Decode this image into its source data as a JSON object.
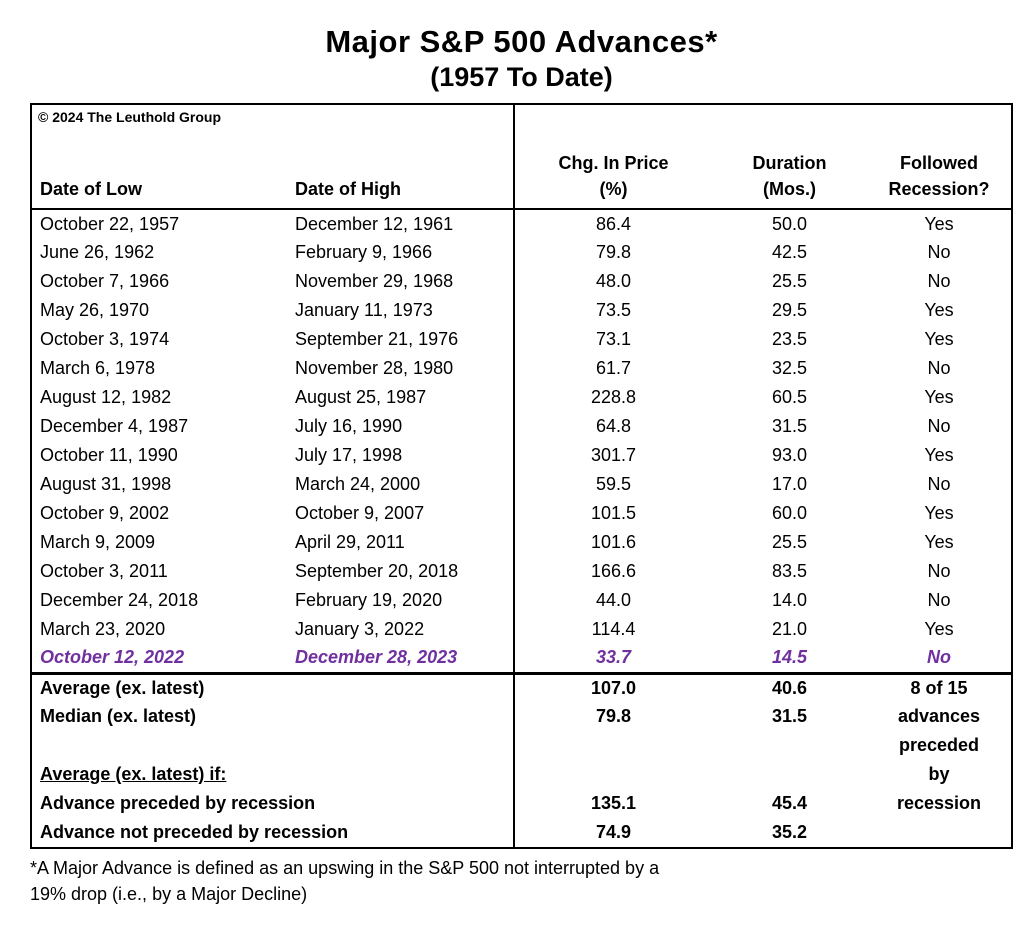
{
  "title": "Major S&P 500 Advances*",
  "subtitle": "(1957 To Date)",
  "copyright": "© 2024 The Leuthold Group",
  "footnote": {
    "line1": "*A Major Advance is defined as an upswing in the S&P 500 not interrupted by a",
    "line2": "19% drop (i.e., by a Major Decline)"
  },
  "colors": {
    "text": "#000000",
    "highlight": "#7030A0",
    "border": "#000000",
    "background": "#ffffff"
  },
  "chart_data": {
    "type": "table",
    "title": "Major S&P 500 Advances*",
    "subtitle": "(1957 To Date)",
    "headers": {
      "low": "Date of Low",
      "high": "Date of High",
      "chg_line1": "Chg. In Price",
      "chg_line2": "(%)",
      "dur_line1": "Duration",
      "dur_line2": "(Mos.)",
      "rec_line1": "Followed",
      "rec_line2": "Recession?"
    },
    "rows": [
      {
        "low": "October 22, 1957",
        "high": "December 12, 1961",
        "chg": "86.4",
        "dur": "50.0",
        "rec": "Yes",
        "highlight": false
      },
      {
        "low": "June 26, 1962",
        "high": "February 9, 1966",
        "chg": "79.8",
        "dur": "42.5",
        "rec": "No",
        "highlight": false
      },
      {
        "low": "October 7, 1966",
        "high": "November 29, 1968",
        "chg": "48.0",
        "dur": "25.5",
        "rec": "No",
        "highlight": false
      },
      {
        "low": "May 26, 1970",
        "high": "January 11, 1973",
        "chg": "73.5",
        "dur": "29.5",
        "rec": "Yes",
        "highlight": false
      },
      {
        "low": "October 3, 1974",
        "high": "September 21, 1976",
        "chg": "73.1",
        "dur": "23.5",
        "rec": "Yes",
        "highlight": false
      },
      {
        "low": "March 6, 1978",
        "high": "November 28, 1980",
        "chg": "61.7",
        "dur": "32.5",
        "rec": "No",
        "highlight": false
      },
      {
        "low": "August 12, 1982",
        "high": "August 25, 1987",
        "chg": "228.8",
        "dur": "60.5",
        "rec": "Yes",
        "highlight": false
      },
      {
        "low": "December 4, 1987",
        "high": "July 16, 1990",
        "chg": "64.8",
        "dur": "31.5",
        "rec": "No",
        "highlight": false
      },
      {
        "low": "October 11, 1990",
        "high": "July 17, 1998",
        "chg": "301.7",
        "dur": "93.0",
        "rec": "Yes",
        "highlight": false
      },
      {
        "low": "August 31, 1998",
        "high": "March 24, 2000",
        "chg": "59.5",
        "dur": "17.0",
        "rec": "No",
        "highlight": false
      },
      {
        "low": "October 9, 2002",
        "high": "October 9, 2007",
        "chg": "101.5",
        "dur": "60.0",
        "rec": "Yes",
        "highlight": false
      },
      {
        "low": "March 9, 2009",
        "high": "April 29, 2011",
        "chg": "101.6",
        "dur": "25.5",
        "rec": "Yes",
        "highlight": false
      },
      {
        "low": "October 3, 2011",
        "high": "September 20, 2018",
        "chg": "166.6",
        "dur": "83.5",
        "rec": "No",
        "highlight": false
      },
      {
        "low": "December 24, 2018",
        "high": "February 19, 2020",
        "chg": "44.0",
        "dur": "14.0",
        "rec": "No",
        "highlight": false
      },
      {
        "low": "March 23, 2020",
        "high": "January 3, 2022",
        "chg": "114.4",
        "dur": "21.0",
        "rec": "Yes",
        "highlight": false
      },
      {
        "low": "October 12, 2022",
        "high": "December 28, 2023",
        "chg": "33.7",
        "dur": "14.5",
        "rec": "No",
        "highlight": true
      }
    ],
    "summary_rows": [
      {
        "label": "Average (ex. latest)",
        "chg": "107.0",
        "dur": "40.6",
        "note": "8 of 15",
        "underline": false
      },
      {
        "label": "Median (ex. latest)",
        "chg": "79.8",
        "dur": "31.5",
        "note": "advances",
        "underline": false
      },
      {
        "label": "",
        "chg": "",
        "dur": "",
        "note": "preceded",
        "underline": false
      },
      {
        "label": "Average (ex. latest) if:",
        "chg": "",
        "dur": "",
        "note": "by",
        "underline": true
      },
      {
        "label": "Advance preceded by recession",
        "chg": "135.1",
        "dur": "45.4",
        "note": "recession",
        "underline": false
      },
      {
        "label": "Advance not preceded by recession",
        "chg": "74.9",
        "dur": "35.2",
        "note": "",
        "underline": false
      }
    ]
  }
}
